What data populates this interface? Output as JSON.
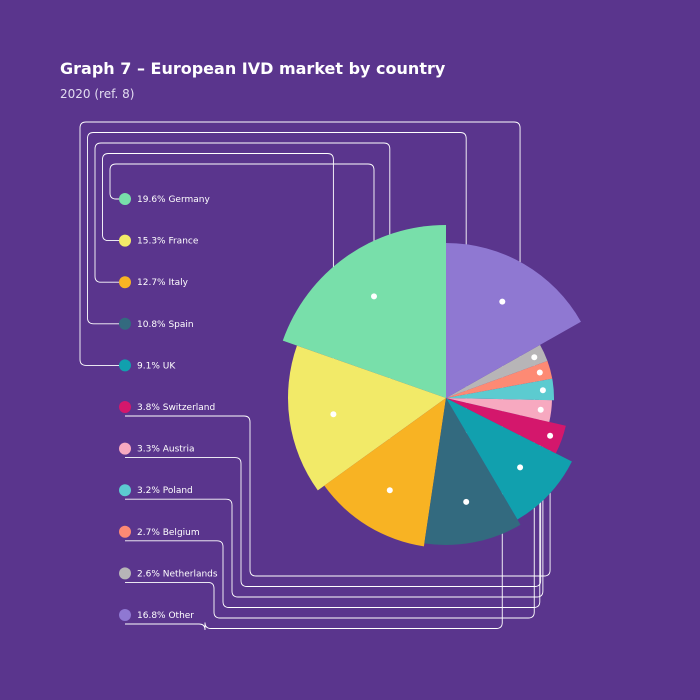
{
  "chart_data": {
    "type": "pie",
    "title": "Graph 7 – European IVD market by country",
    "subtitle": "2020 (ref. 8)",
    "background_color": "#5a358d",
    "leader_line_color": "#ffffff",
    "slices": [
      {
        "label": "19.6% Germany",
        "value": 19.6,
        "color": "#78dfaa"
      },
      {
        "label": "15.3% France",
        "value": 15.3,
        "color": "#f2ea68"
      },
      {
        "label": "12.7% Italy",
        "value": 12.7,
        "color": "#f8b323"
      },
      {
        "label": "10.8% Spain",
        "value": 10.8,
        "color": "#336a7f"
      },
      {
        "label": "9.1% UK",
        "value": 9.1,
        "color": "#11a0ae"
      },
      {
        "label": "3.8% Switzerland",
        "value": 3.8,
        "color": "#d4176c"
      },
      {
        "label": "3.3% Austria",
        "value": 3.3,
        "color": "#f7a9c0"
      },
      {
        "label": "3.2% Poland",
        "value": 3.2,
        "color": "#5ccbd0"
      },
      {
        "label": "2.7% Belgium",
        "value": 2.7,
        "color": "#fd8a74"
      },
      {
        "label": "2.6% Netherlands",
        "value": 2.6,
        "color": "#b7b5b7"
      },
      {
        "label": "16.8% Other",
        "value": 16.8,
        "color": "#8f78d2"
      }
    ]
  }
}
